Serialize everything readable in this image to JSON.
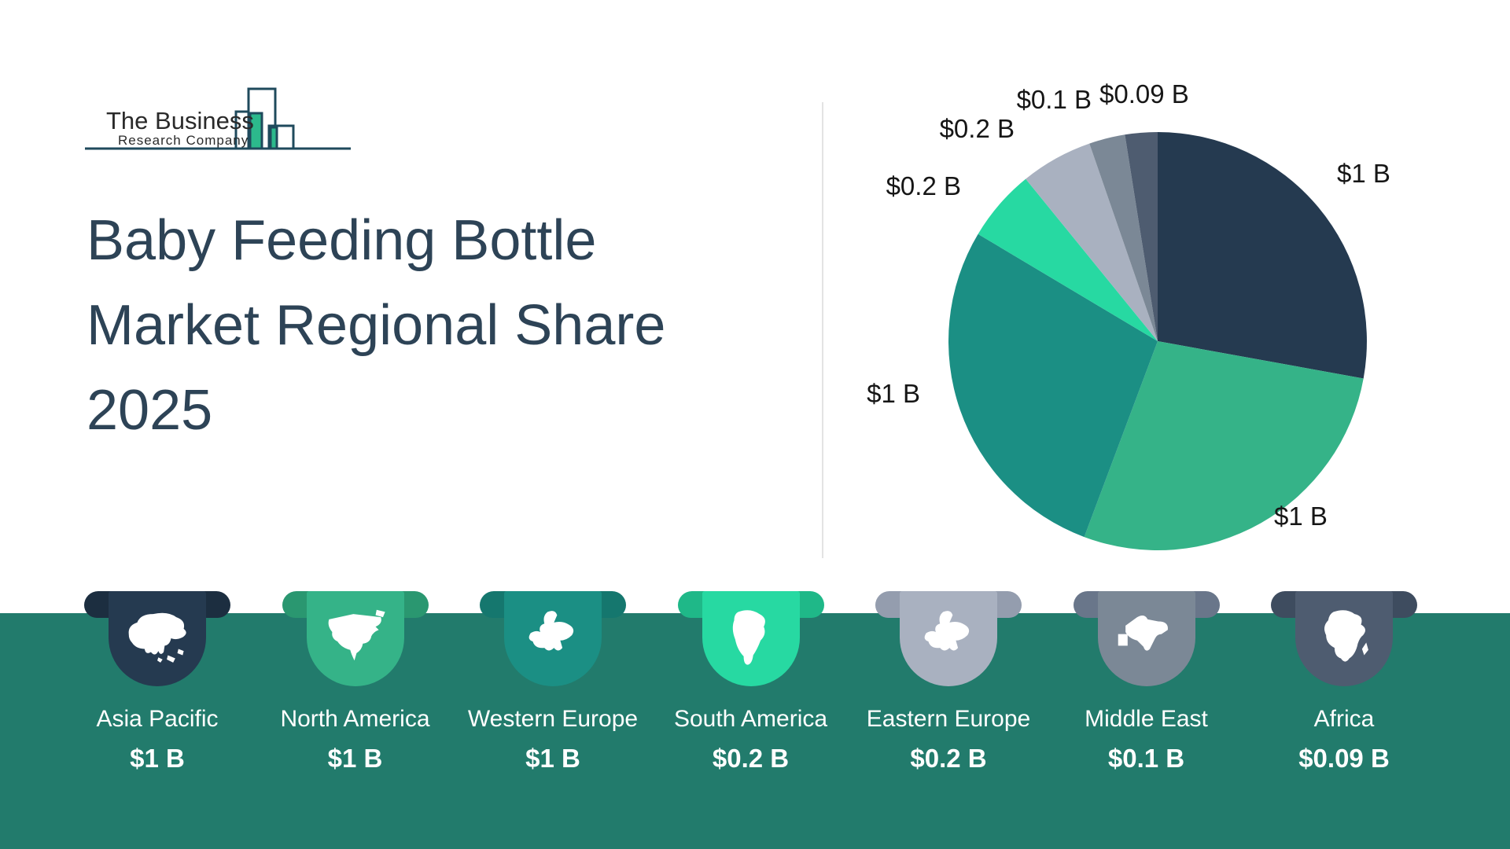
{
  "logo": {
    "line1": "The Business",
    "line2": "Research Company"
  },
  "title": {
    "line1": "Baby Feeding Bottle",
    "line2": "Market Regional Share",
    "line3": "2025"
  },
  "chart_data": {
    "type": "pie",
    "title": "Baby Feeding Bottle Market Regional Share 2025",
    "values_unit": "USD billions",
    "categories": [
      "Asia Pacific",
      "North America",
      "Western Europe",
      "South America",
      "Eastern Europe",
      "Middle East",
      "Africa"
    ],
    "values": [
      1,
      1,
      1,
      0.2,
      0.2,
      0.1,
      0.09
    ],
    "labels": [
      "$1 B",
      "$1 B",
      "$1 B",
      "$0.2 B",
      "$0.2 B",
      "$0.1 B",
      "$0.09 B"
    ],
    "colors": [
      "#253a50",
      "#35b388",
      "#1b8f84",
      "#27d9a2",
      "#a9b1c0",
      "#7b8896",
      "#4e5c70"
    ],
    "start_angle_deg": 0,
    "direction": "clockwise",
    "legend_position": "none",
    "grid": false
  },
  "regions": [
    {
      "name": "Asia Pacific",
      "value": "$1 B",
      "color": "#253a50",
      "wing_color": "#1c2e40",
      "icon": "asia-map-icon"
    },
    {
      "name": "North America",
      "value": "$1 B",
      "color": "#35b388",
      "wing_color": "#2a9770",
      "icon": "north-america-map-icon"
    },
    {
      "name": "Western Europe",
      "value": "$1 B",
      "color": "#1b8f84",
      "wing_color": "#15776e",
      "icon": "western-europe-map-icon"
    },
    {
      "name": "South America",
      "value": "$0.2 B",
      "color": "#27d9a2",
      "wing_color": "#1fb888",
      "icon": "south-america-map-icon"
    },
    {
      "name": "Eastern Europe",
      "value": "$0.2 B",
      "color": "#a9b1c0",
      "wing_color": "#949dae",
      "icon": "eastern-europe-map-icon"
    },
    {
      "name": "Middle East",
      "value": "$0.1 B",
      "color": "#7b8896",
      "wing_color": "#69768a",
      "icon": "middle-east-map-icon"
    },
    {
      "name": "Africa",
      "value": "$0.09 B",
      "color": "#4e5c70",
      "wing_color": "#3e4c5f",
      "icon": "africa-map-icon"
    }
  ],
  "theme": {
    "band_color": "#227b6c",
    "title_color": "#2d4356",
    "divider_color": "#e3e3e3",
    "pie_label_color": "#161616",
    "logo_outline_color": "#1f4a5c",
    "logo_green_color": "#2cb98c",
    "text_on_band_color": "#ffffff"
  }
}
